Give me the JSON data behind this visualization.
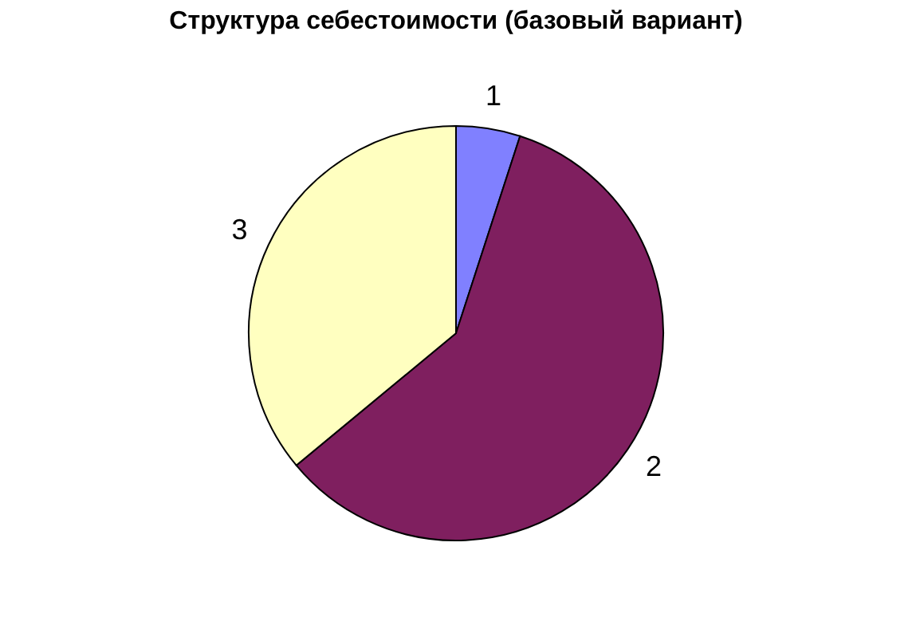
{
  "chart_data": {
    "type": "pie",
    "title": "Структура себестоимости (базовый вариант)",
    "categories": [
      "1",
      "2",
      "3"
    ],
    "values": [
      5,
      59,
      36
    ],
    "colors": [
      "#8080ff",
      "#7f1f5f",
      "#ffffc0"
    ],
    "legend": false
  }
}
